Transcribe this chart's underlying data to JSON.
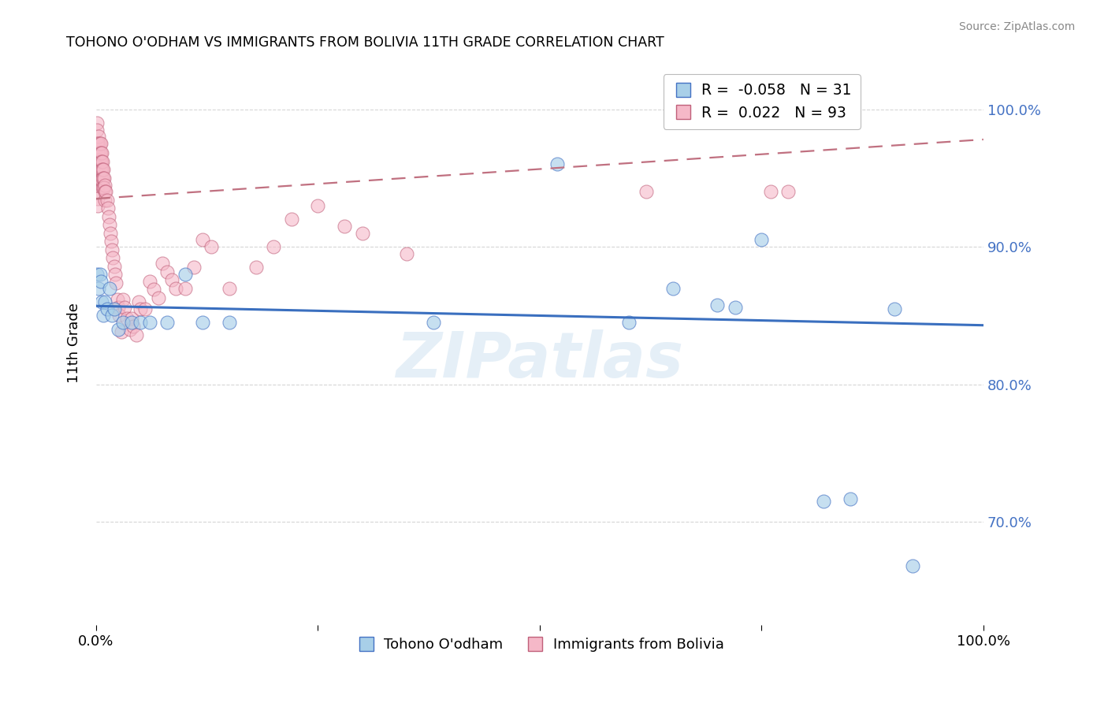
{
  "title": "TOHONO O'ODHAM VS IMMIGRANTS FROM BOLIVIA 11TH GRADE CORRELATION CHART",
  "source": "Source: ZipAtlas.com",
  "ylabel": "11th Grade",
  "xlim": [
    0.0,
    1.0
  ],
  "ylim": [
    0.625,
    1.035
  ],
  "blue_R": -0.058,
  "blue_N": 31,
  "pink_R": 0.022,
  "pink_N": 93,
  "blue_color": "#a8cfe8",
  "pink_color": "#f5b8c8",
  "blue_edge_color": "#4472c4",
  "pink_edge_color": "#c0607a",
  "blue_line_color": "#3a6fbf",
  "pink_line_color": "#c07080",
  "grid_color": "#cccccc",
  "watermark": "ZIPatlas",
  "legend_label_blue": "Tohono O'odham",
  "legend_label_pink": "Immigrants from Bolivia",
  "ytick_vals": [
    0.7,
    0.8,
    0.9,
    1.0
  ],
  "ytick_labels": [
    "70.0%",
    "80.0%",
    "90.0%",
    "100.0%"
  ],
  "blue_scatter_x": [
    0.001,
    0.003,
    0.004,
    0.005,
    0.006,
    0.008,
    0.01,
    0.012,
    0.015,
    0.018,
    0.02,
    0.025,
    0.03,
    0.04,
    0.05,
    0.06,
    0.08,
    0.1,
    0.12,
    0.15,
    0.38,
    0.52,
    0.6,
    0.65,
    0.7,
    0.72,
    0.75,
    0.82,
    0.85,
    0.9,
    0.92
  ],
  "blue_scatter_y": [
    0.88,
    0.87,
    0.88,
    0.875,
    0.86,
    0.85,
    0.86,
    0.855,
    0.87,
    0.85,
    0.855,
    0.84,
    0.845,
    0.845,
    0.845,
    0.845,
    0.845,
    0.88,
    0.845,
    0.845,
    0.845,
    0.96,
    0.845,
    0.87,
    0.858,
    0.856,
    0.905,
    0.715,
    0.717,
    0.855,
    0.668
  ],
  "pink_scatter_x": [
    0.001,
    0.001,
    0.001,
    0.001,
    0.002,
    0.002,
    0.002,
    0.002,
    0.002,
    0.002,
    0.002,
    0.002,
    0.002,
    0.002,
    0.003,
    0.003,
    0.003,
    0.003,
    0.003,
    0.003,
    0.004,
    0.004,
    0.004,
    0.004,
    0.005,
    0.005,
    0.005,
    0.005,
    0.005,
    0.006,
    0.006,
    0.006,
    0.006,
    0.007,
    0.007,
    0.007,
    0.007,
    0.008,
    0.008,
    0.008,
    0.009,
    0.009,
    0.01,
    0.01,
    0.01,
    0.011,
    0.012,
    0.013,
    0.014,
    0.015,
    0.016,
    0.017,
    0.018,
    0.019,
    0.02,
    0.021,
    0.022,
    0.024,
    0.025,
    0.026,
    0.028,
    0.03,
    0.032,
    0.035,
    0.038,
    0.04,
    0.042,
    0.045,
    0.048,
    0.05,
    0.055,
    0.06,
    0.065,
    0.07,
    0.075,
    0.08,
    0.085,
    0.09,
    0.1,
    0.11,
    0.12,
    0.13,
    0.15,
    0.18,
    0.2,
    0.22,
    0.25,
    0.28,
    0.3,
    0.35,
    0.62,
    0.76,
    0.78
  ],
  "pink_scatter_y": [
    0.99,
    0.985,
    0.975,
    0.975,
    0.975,
    0.968,
    0.963,
    0.96,
    0.955,
    0.95,
    0.945,
    0.94,
    0.935,
    0.93,
    0.98,
    0.975,
    0.968,
    0.963,
    0.958,
    0.952,
    0.975,
    0.968,
    0.962,
    0.955,
    0.975,
    0.968,
    0.962,
    0.956,
    0.949,
    0.968,
    0.962,
    0.956,
    0.949,
    0.962,
    0.956,
    0.95,
    0.943,
    0.956,
    0.95,
    0.943,
    0.95,
    0.943,
    0.945,
    0.94,
    0.934,
    0.94,
    0.934,
    0.928,
    0.922,
    0.916,
    0.91,
    0.904,
    0.898,
    0.892,
    0.886,
    0.88,
    0.874,
    0.862,
    0.856,
    0.85,
    0.838,
    0.862,
    0.856,
    0.848,
    0.84,
    0.848,
    0.842,
    0.836,
    0.86,
    0.855,
    0.855,
    0.875,
    0.869,
    0.863,
    0.888,
    0.882,
    0.876,
    0.87,
    0.87,
    0.885,
    0.905,
    0.9,
    0.87,
    0.885,
    0.9,
    0.92,
    0.93,
    0.915,
    0.91,
    0.895,
    0.94,
    0.94,
    0.94
  ],
  "blue_trend_x": [
    0.0,
    1.0
  ],
  "blue_trend_y": [
    0.857,
    0.843
  ],
  "pink_trend_x": [
    0.0,
    1.0
  ],
  "pink_trend_y": [
    0.935,
    0.978
  ]
}
